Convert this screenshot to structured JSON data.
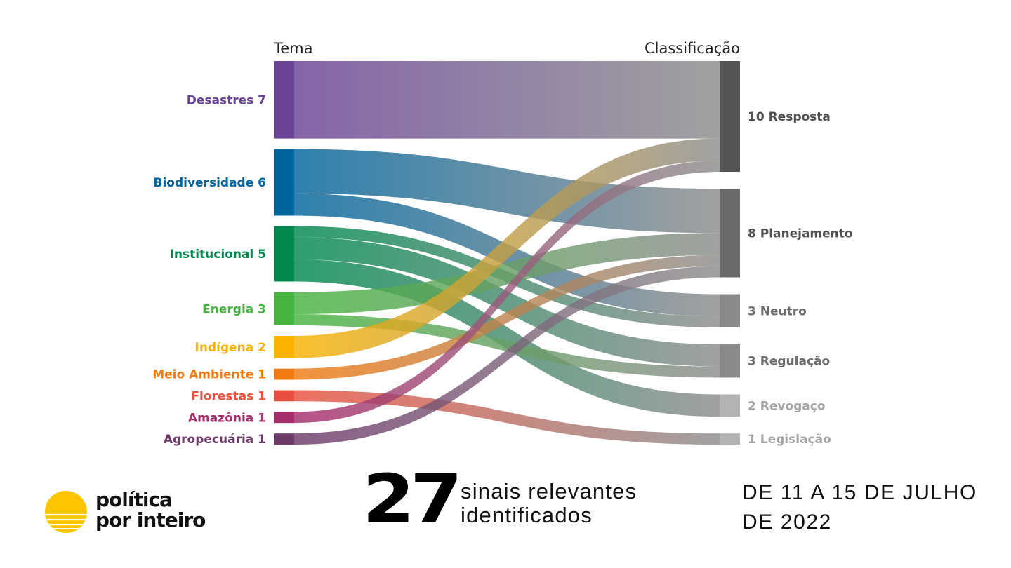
{
  "chart_data": {
    "type": "sankey",
    "column_headers": {
      "left": "Tema",
      "right": "Classificação"
    },
    "sources": [
      {
        "name": "Desastres",
        "value": 7,
        "label": "Desastres 7",
        "color": "#6a4396"
      },
      {
        "name": "Biodiversidade",
        "value": 6,
        "label": "Biodiversidade 6",
        "color": "#00659c"
      },
      {
        "name": "Institucional",
        "value": 5,
        "label": "Institucional 5",
        "color": "#00884f"
      },
      {
        "name": "Energia",
        "value": 3,
        "label": "Energia 3",
        "color": "#46b33f"
      },
      {
        "name": "Indígena",
        "value": 2,
        "label": "Indígena 2",
        "color": "#f9b200"
      },
      {
        "name": "Meio Ambiente",
        "value": 1,
        "label": "Meio Ambiente 1",
        "color": "#f07a10"
      },
      {
        "name": "Florestas",
        "value": 1,
        "label": "Florestas 1",
        "color": "#e8503d"
      },
      {
        "name": "Amazônia",
        "value": 1,
        "label": "Amazônia 1",
        "color": "#a72c6c"
      },
      {
        "name": "Agropecuária",
        "value": 1,
        "label": "Agropecuária 1",
        "color": "#6e3a69"
      }
    ],
    "targets": [
      {
        "name": "Resposta",
        "value": 10,
        "label": "10 Resposta",
        "color": "#545454",
        "label_color": "#505050"
      },
      {
        "name": "Planejamento",
        "value": 8,
        "label": "8 Planejamento",
        "color": "#6a6a6a",
        "label_color": "#505050"
      },
      {
        "name": "Neutro",
        "value": 3,
        "label": "3 Neutro",
        "color": "#8a8a8a",
        "label_color": "#6d6d6d"
      },
      {
        "name": "Regulação",
        "value": 3,
        "label": "3 Regulação",
        "color": "#8a8a8a",
        "label_color": "#6d6d6d"
      },
      {
        "name": "Revogaço",
        "value": 2,
        "label": "2 Revogaço",
        "color": "#b3b3b3",
        "label_color": "#a5a5a5"
      },
      {
        "name": "Legislação",
        "value": 1,
        "label": "1 Legislação",
        "color": "#b3b3b3",
        "label_color": "#a5a5a5"
      }
    ],
    "link_end_color": "#8c8c8c",
    "links": [
      {
        "source": "Desastres",
        "target": "Resposta",
        "value": 7
      },
      {
        "source": "Biodiversidade",
        "target": "Planejamento",
        "value": 4
      },
      {
        "source": "Biodiversidade",
        "target": "Neutro",
        "value": 2
      },
      {
        "source": "Institucional",
        "target": "Neutro",
        "value": 1
      },
      {
        "source": "Institucional",
        "target": "Regulação",
        "value": 2
      },
      {
        "source": "Institucional",
        "target": "Revogaço",
        "value": 2
      },
      {
        "source": "Energia",
        "target": "Planejamento",
        "value": 2
      },
      {
        "source": "Energia",
        "target": "Regulação",
        "value": 1
      },
      {
        "source": "Indígena",
        "target": "Resposta",
        "value": 2
      },
      {
        "source": "Meio Ambiente",
        "target": "Planejamento",
        "value": 1
      },
      {
        "source": "Florestas",
        "target": "Legislação",
        "value": 1
      },
      {
        "source": "Amazônia",
        "target": "Resposta",
        "value": 1
      },
      {
        "source": "Agropecuária",
        "target": "Planejamento",
        "value": 1
      }
    ]
  },
  "footer": {
    "logo_line1": "política",
    "logo_line2": "por inteiro",
    "logo_color": "#fdc500",
    "big_number": "27",
    "signals_line1": "sinais relevantes",
    "signals_line2": "identificados",
    "period_line1": "DE 11 A 15 DE JULHO",
    "period_line2": "DE 2022"
  }
}
